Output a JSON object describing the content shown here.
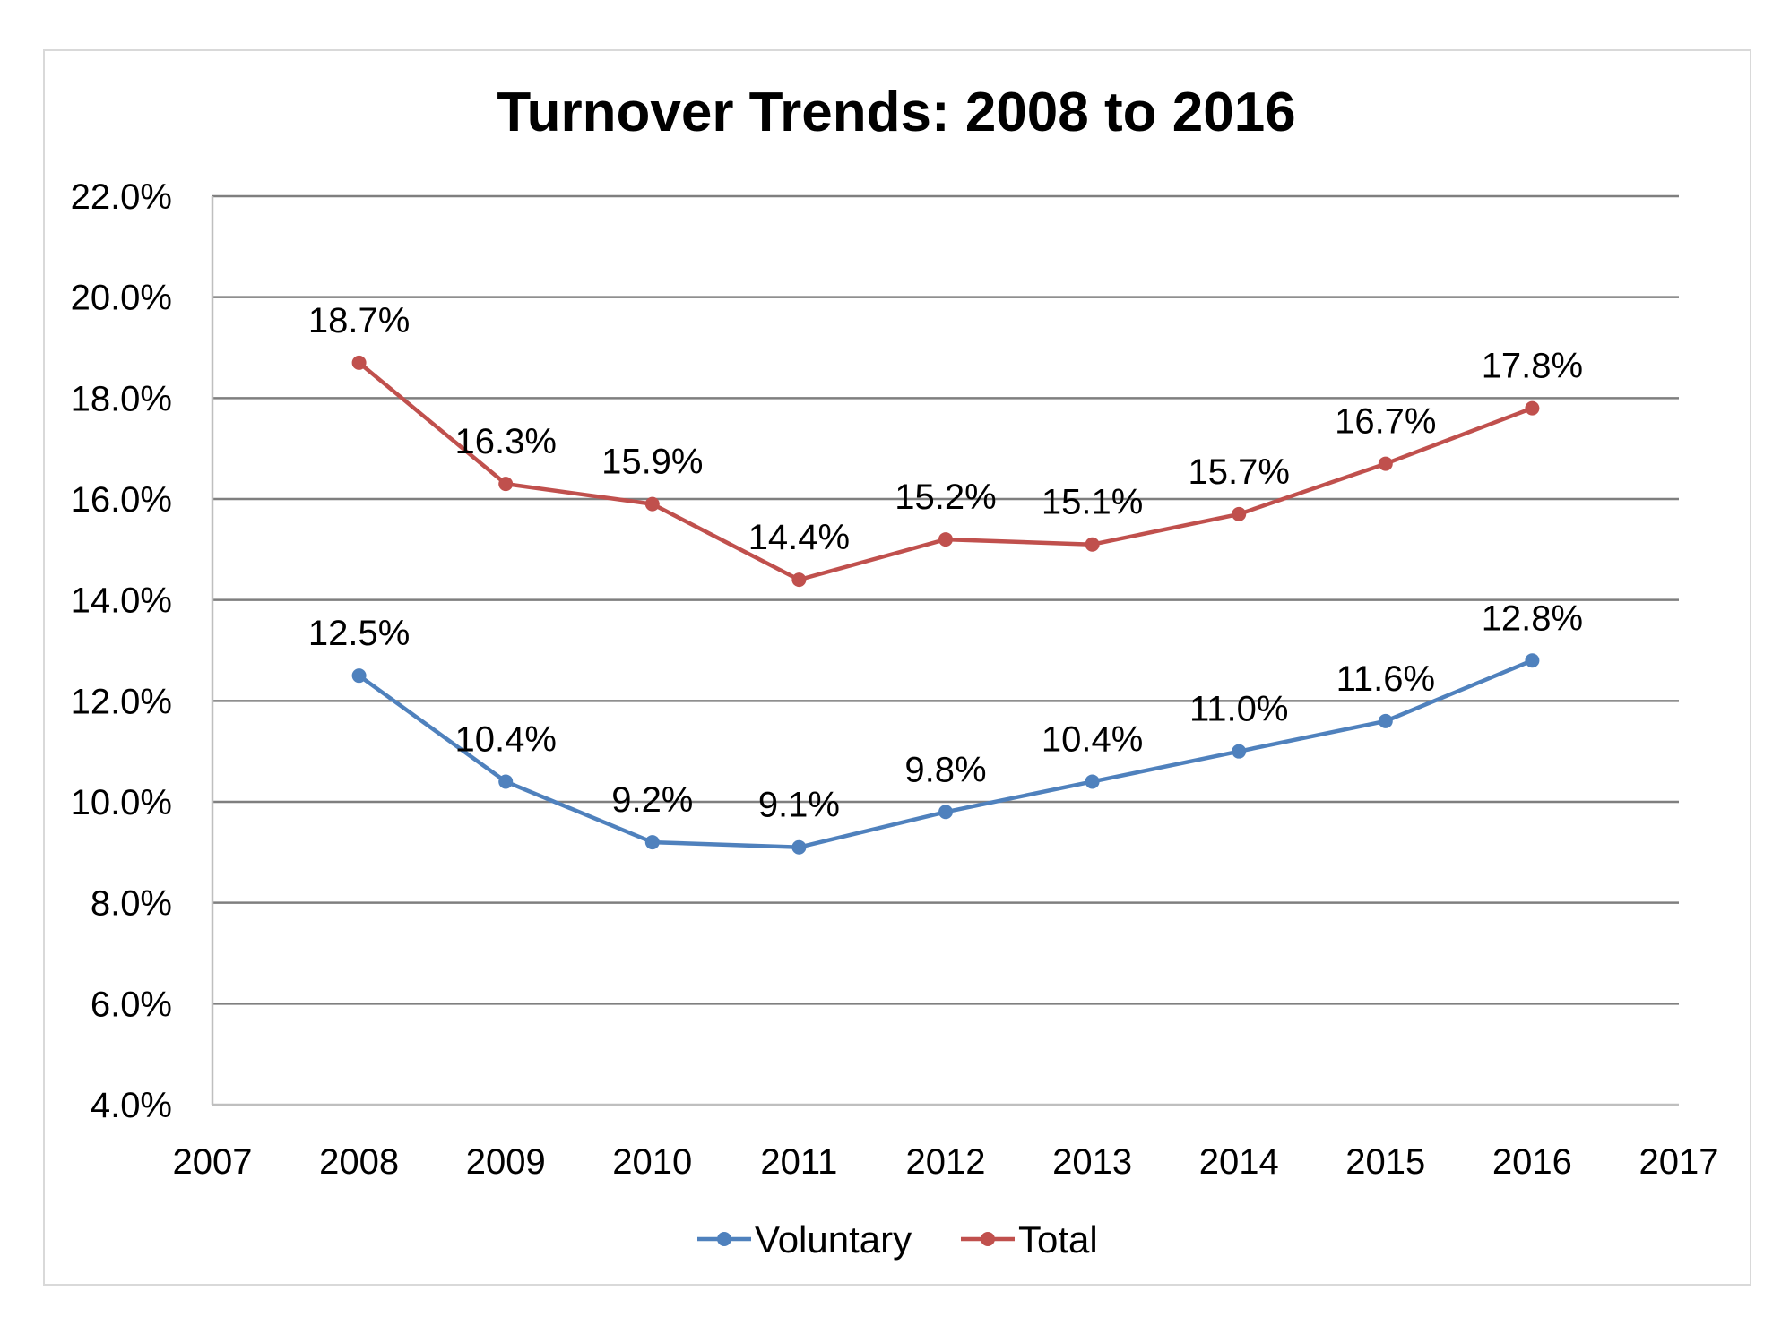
{
  "chart_data": {
    "type": "line",
    "title": "Turnover Trends: 2008 to 2016",
    "xlabel": "",
    "ylabel": "",
    "xlim": [
      2007,
      2017
    ],
    "x_ticks": [
      "2007",
      "2008",
      "2009",
      "2010",
      "2011",
      "2012",
      "2013",
      "2014",
      "2015",
      "2016",
      "2017"
    ],
    "ylim": [
      4.0,
      22.0
    ],
    "y_ticks": [
      "4.0%",
      "6.0%",
      "8.0%",
      "10.0%",
      "12.0%",
      "14.0%",
      "16.0%",
      "18.0%",
      "20.0%",
      "22.0%"
    ],
    "grid": "horizontal",
    "legend_position": "bottom",
    "x": [
      2008,
      2009,
      2010,
      2011,
      2012,
      2013,
      2014,
      2015,
      2016
    ],
    "series": [
      {
        "name": "Voluntary",
        "color": "#4f81bd",
        "values": [
          12.5,
          10.4,
          9.2,
          9.1,
          9.8,
          10.4,
          11.0,
          11.6,
          12.8
        ],
        "labels": [
          "12.5%",
          "10.4%",
          "9.2%",
          "9.1%",
          "9.8%",
          "10.4%",
          "11.0%",
          "11.6%",
          "12.8%"
        ]
      },
      {
        "name": "Total",
        "color": "#c0504d",
        "values": [
          18.7,
          16.3,
          15.9,
          14.4,
          15.2,
          15.1,
          15.7,
          16.7,
          17.8
        ],
        "labels": [
          "18.7%",
          "16.3%",
          "15.9%",
          "14.4%",
          "15.2%",
          "15.1%",
          "15.7%",
          "16.7%",
          "17.8%"
        ]
      }
    ],
    "gridline_color": "#7f7f7f",
    "axis_color": "#bfbfbf"
  }
}
